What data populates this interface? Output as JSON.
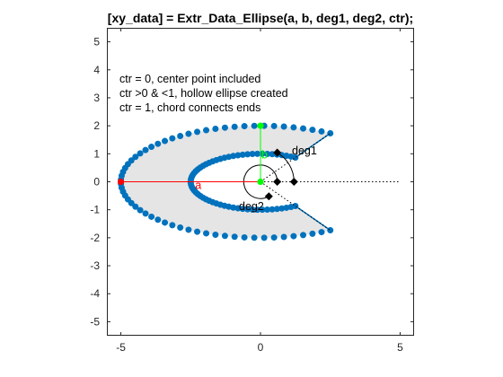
{
  "chart_data": {
    "type": "scatter",
    "title": "[xy_data] = Extr_Data_Ellipse(a, b, deg1, deg2, ctr);",
    "xlim": [
      -5.5,
      5.5
    ],
    "ylim": [
      -5.5,
      5.5
    ],
    "x_ticks": [
      -5,
      0,
      5
    ],
    "y_ticks": [
      -5,
      -4,
      -3,
      -2,
      -1,
      0,
      1,
      2,
      3,
      4,
      5
    ],
    "x_tick_labels": [
      "-5",
      "0",
      "5"
    ],
    "y_tick_labels": [
      "-5",
      "-4",
      "-3",
      "-2",
      "-1",
      "0",
      "1",
      "2",
      "3",
      "4",
      "5"
    ],
    "grid": false,
    "box": true,
    "notes": [
      "ctr = 0, center point included",
      "ctr >0 & <1, hollow ellipse created",
      "ctr = 1, chord connects ends"
    ],
    "ellipse": {
      "a": 5,
      "b": 2,
      "deg1": 60,
      "deg2": 300,
      "ctr": 0.5,
      "points_per_arc": 60
    },
    "colors": {
      "points": "#0072BD",
      "fill": "#e5e5e5",
      "a_line": "#ff0000",
      "b_line": "#00ff00",
      "markers": "#000000"
    },
    "annotations": {
      "a_label": "a",
      "b_label": "b",
      "deg1_label": "deg1",
      "deg2_label": "deg2"
    }
  }
}
